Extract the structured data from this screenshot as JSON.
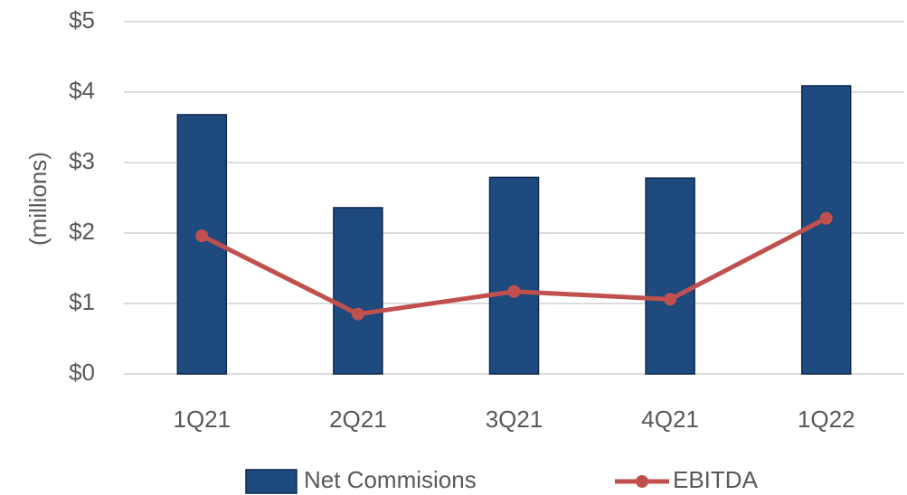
{
  "chart_data": {
    "type": "bar",
    "y_label": "(millions)",
    "categories": [
      "1Q21",
      "2Q21",
      "3Q21",
      "4Q21",
      "1Q22"
    ],
    "series": [
      {
        "name": "Net Commisions",
        "type": "bar",
        "color": "#1f4a7e",
        "values": [
          3.68,
          2.36,
          2.79,
          2.78,
          4.09
        ]
      },
      {
        "name": "EBITDA",
        "type": "line",
        "color": "#c0504d",
        "values": [
          1.96,
          0.85,
          1.17,
          1.06,
          2.21
        ]
      }
    ],
    "ylim": [
      0,
      5
    ],
    "yticks": [
      {
        "value": 0,
        "label": "$0"
      },
      {
        "value": 1,
        "label": "$1"
      },
      {
        "value": 2,
        "label": "$2"
      },
      {
        "value": 3,
        "label": "$3"
      },
      {
        "value": 4,
        "label": "$4"
      },
      {
        "value": 5,
        "label": "$5"
      }
    ],
    "grid": true,
    "legend": "bottom"
  }
}
